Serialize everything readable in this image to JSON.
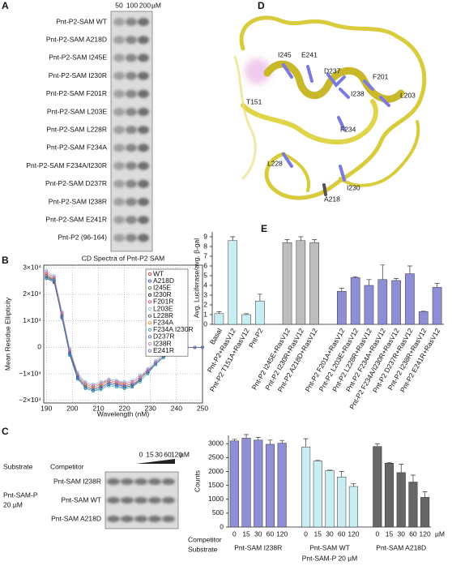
{
  "panel_labels": [
    "A",
    "B",
    "C",
    "D",
    "E"
  ],
  "panel_a": {
    "concentrations": [
      "50",
      "100",
      "200"
    ],
    "unit": "µM",
    "rows": [
      {
        "label": "Pnt-P2-SAM WT",
        "color": "#111111"
      },
      {
        "label": "Pnt-P2-SAM A218D",
        "color": "#111111"
      },
      {
        "label": "Pnt-P2-SAM I245E",
        "color": "#111111"
      },
      {
        "label": "Pnt-P2-SAM I230R",
        "color": "#111111"
      },
      {
        "label": "Pnt-P2-SAM F201R",
        "color": "#3a5bbf"
      },
      {
        "label": "Pnt-P2-SAM L203E",
        "color": "#3a5bbf"
      },
      {
        "label": "Pnt-P2-SAM L228R",
        "color": "#3a5bbf"
      },
      {
        "label": "Pnt-P2-SAM F234A",
        "color": "#3a5bbf"
      },
      {
        "label": "Pnt-P2-SAM F234A/I230R",
        "color": "#3a5bbf"
      },
      {
        "label": "Pnt-P2-SAM D237R",
        "color": "#3a5bbf"
      },
      {
        "label": "Pnt-P2-SAM I238R",
        "color": "#3a5bbf"
      },
      {
        "label": "Pnt-P2-SAM E241R",
        "color": "#3a5bbf"
      },
      {
        "label": "Pnt-P2 (96-164)",
        "color": "#3a5bbf"
      }
    ]
  },
  "panel_c_gel": {
    "substrate_label": "Substrate",
    "competitor_label": "Competitor",
    "concentrations": [
      "0",
      "15",
      "30",
      "60",
      "120"
    ],
    "unit": "µM",
    "substrate": [
      "Pnt-SAM-P",
      "20 µM"
    ],
    "rows": [
      "Pnt-SAM I238R",
      "Pnt-SAM WT",
      "Pnt-SAM A218D"
    ]
  },
  "panel_d": {
    "residue_labels": [
      "I245",
      "E241",
      "D237",
      "F201",
      "I238",
      "T151",
      "L203",
      "F234",
      "L228",
      "I230",
      "A218"
    ]
  },
  "chart_data": [
    {
      "type": "scatter",
      "title": "CD Spectra of Pnt-P2 SAM",
      "x_label": "Wavelength (nM)",
      "y_label": "Mean Residue Ellipticity",
      "xlim": [
        189,
        250
      ],
      "xticks": [
        190,
        200,
        210,
        220,
        230,
        240,
        250
      ],
      "ylim": [
        -21000,
        31000
      ],
      "yticks": [
        {
          "value": -20000,
          "label": "−2×10⁴"
        },
        {
          "value": -10000,
          "label": "−1×10⁴"
        },
        0,
        {
          "value": 10000,
          "label": "1×10⁴"
        },
        {
          "value": 20000,
          "label": "2×10⁴"
        },
        {
          "value": 30000,
          "label": "3×10⁴"
        }
      ],
      "grid": true,
      "legend": "upper right",
      "x": [
        190,
        193,
        196,
        199,
        202,
        205,
        208,
        211,
        214,
        217,
        220,
        223,
        226,
        229,
        232,
        235,
        238,
        241,
        244,
        247,
        250
      ],
      "series": [
        {
          "name": "WT",
          "color": "#e02020",
          "values": [
            27000,
            25500,
            12000,
            -2000,
            -11000,
            -14500,
            -15500,
            -14500,
            -13000,
            -13500,
            -14500,
            -14000,
            -12000,
            -9000,
            -6000,
            -3500,
            -1500,
            -500,
            0,
            0,
            0
          ]
        },
        {
          "name": "A218D",
          "color": "#2040d0",
          "values": [
            26500,
            25000,
            11000,
            -3000,
            -12000,
            -15500,
            -16500,
            -15500,
            -14000,
            -14500,
            -15500,
            -15000,
            -12500,
            -9500,
            -6500,
            -3500,
            -1500,
            -500,
            0,
            0,
            0
          ]
        },
        {
          "name": "I245E",
          "color": "#3a6a3a",
          "values": [
            27500,
            26000,
            12500,
            -1500,
            -10500,
            -14000,
            -15000,
            -14000,
            -12500,
            -13000,
            -14000,
            -13500,
            -11500,
            -8500,
            -5500,
            -3000,
            -1500,
            -500,
            0,
            0,
            0
          ]
        },
        {
          "name": "I230R",
          "color": "#111111",
          "values": [
            26000,
            24500,
            11500,
            -2500,
            -11500,
            -15000,
            -16000,
            -15000,
            -13500,
            -14000,
            -15000,
            -14500,
            -12500,
            -9500,
            -6000,
            -3500,
            -1500,
            -500,
            0,
            0,
            0
          ]
        },
        {
          "name": "F201R",
          "color": "#e04060",
          "values": [
            28000,
            26500,
            13000,
            -1000,
            -10000,
            -13500,
            -14500,
            -13500,
            -12000,
            -12500,
            -13500,
            -13000,
            -11000,
            -8500,
            -5500,
            -3000,
            -1000,
            -500,
            0,
            0,
            0
          ]
        },
        {
          "name": "L203E",
          "color": "#70c8d8",
          "values": [
            29000,
            27000,
            13500,
            -500,
            -9500,
            -13000,
            -14000,
            -13000,
            -12000,
            -12500,
            -13000,
            -12500,
            -10500,
            -8000,
            -5000,
            -2500,
            -1000,
            0,
            0,
            0,
            0
          ]
        },
        {
          "name": "L228R",
          "color": "#444444",
          "values": [
            26500,
            25000,
            11500,
            -2500,
            -11500,
            -15000,
            -16000,
            -15000,
            -13500,
            -14000,
            -15000,
            -14500,
            -12000,
            -9000,
            -6000,
            -3500,
            -1500,
            -500,
            0,
            0,
            0
          ]
        },
        {
          "name": "F234A",
          "color": "#e08020",
          "values": [
            27500,
            25500,
            12500,
            -2000,
            -11000,
            -14500,
            -15500,
            -14500,
            -13000,
            -13500,
            -14000,
            -13500,
            -11500,
            -9000,
            -6000,
            -3500,
            -1500,
            -500,
            0,
            0,
            0
          ]
        },
        {
          "name": "F234A I230R",
          "color": "#20a0a0",
          "values": [
            26000,
            25000,
            11000,
            -3000,
            -12000,
            -15500,
            -16500,
            -16000,
            -14500,
            -15000,
            -15500,
            -15000,
            -13000,
            -10000,
            -6500,
            -4000,
            -2000,
            -500,
            0,
            0,
            0
          ]
        },
        {
          "name": "D237R",
          "color": "#4060e0",
          "values": [
            27000,
            25000,
            11500,
            -2500,
            -11500,
            -15000,
            -16000,
            -15000,
            -13500,
            -14000,
            -14500,
            -14000,
            -12000,
            -9000,
            -6000,
            -3500,
            -1500,
            -500,
            0,
            0,
            0
          ]
        },
        {
          "name": "I238R",
          "color": "#e070c0",
          "values": [
            28500,
            26500,
            13000,
            -1000,
            -10000,
            -13500,
            -14500,
            -13500,
            -12500,
            -13000,
            -13500,
            -13000,
            -11000,
            -8500,
            -5500,
            -3000,
            -1000,
            -500,
            0,
            0,
            0
          ]
        },
        {
          "name": "E241R",
          "color": "#5070a0",
          "values": [
            26500,
            25500,
            12000,
            -2000,
            -11000,
            -15000,
            -16000,
            -15000,
            -13500,
            -14000,
            -15000,
            -14500,
            -12500,
            -9500,
            -6000,
            -3500,
            -1500,
            -500,
            0,
            0,
            0
          ]
        }
      ]
    },
    {
      "type": "bar",
      "y_label": "Avg. Luciferase/avg. β-gal",
      "ylim": [
        0,
        9.5
      ],
      "yticks": [
        0,
        1,
        2,
        3,
        4,
        5,
        6,
        7,
        8,
        9
      ],
      "groups": [
        {
          "color": "#c9eef2",
          "categories": [
            "Basal",
            "Pnt-P2+RasV12",
            "Pnt-P2 T151A+RasV12",
            "Pnt-P2"
          ],
          "values": [
            1.1,
            8.6,
            1.0,
            2.4
          ],
          "errors": [
            0.2,
            0.4,
            0.1,
            0.7
          ]
        },
        {
          "color": "#bdbdbd",
          "categories": [
            "Pnt-P2 I245E+RasV12",
            "Pnt-P2 I230R+RasV12",
            "Pnt-P2 A218D+RasV12"
          ],
          "values": [
            8.4,
            8.6,
            8.4
          ],
          "errors": [
            0.3,
            0.4,
            0.3
          ]
        },
        {
          "color": "#8e8ed6",
          "categories": [
            "Pnt-P2 F201A+RasV12",
            "Pnt-P2 L203E+RasV12",
            "Pnt-P2 L228R+RasV12",
            "Pnt-P2 F234A+RasV12",
            "Pnt-P2 F234A/I230R+RasV12",
            "Pnt-P2 D237R+RasV12",
            "Pnt-P2 I238R+RasV12",
            "Pnt-P2 E241R+RasV12"
          ],
          "values": [
            3.4,
            4.8,
            4.0,
            4.6,
            4.5,
            5.2,
            1.3,
            3.8
          ],
          "errors": [
            0.3,
            0.1,
            0.6,
            1.5,
            0.2,
            0.8,
            0.05,
            0.4
          ]
        }
      ]
    },
    {
      "type": "bar",
      "y_label": "Counts",
      "ylim": [
        0,
        3300
      ],
      "yticks": [
        0,
        500,
        1000,
        1500,
        2000,
        2500,
        3000
      ],
      "categories": [
        "0",
        "15",
        "30",
        "60",
        "120"
      ],
      "unit": "µM",
      "competitor_label": "Competitor",
      "substrate_label": "Substrate",
      "substrate_note": "Pnt-SAM-P 20 µM",
      "series": [
        {
          "name": "Pnt-SAM I238R",
          "color": "#8f8fd8",
          "label_color": "#3a5bbf",
          "values": [
            3100,
            3200,
            3130,
            2980,
            3020
          ],
          "errors": [
            60,
            130,
            100,
            150,
            100
          ]
        },
        {
          "name": "Pnt-SAM WT",
          "color": "#c9eef2",
          "label_color": "#66b8d8",
          "values": [
            2880,
            2380,
            2030,
            1800,
            1460
          ],
          "errors": [
            300,
            20,
            20,
            200,
            100
          ]
        },
        {
          "name": "Pnt-SAM A218D",
          "color": "#666666",
          "label_color": "#111111",
          "values": [
            2900,
            2300,
            1960,
            1620,
            1070
          ],
          "errors": [
            100,
            20,
            300,
            250,
            200
          ]
        }
      ]
    }
  ]
}
